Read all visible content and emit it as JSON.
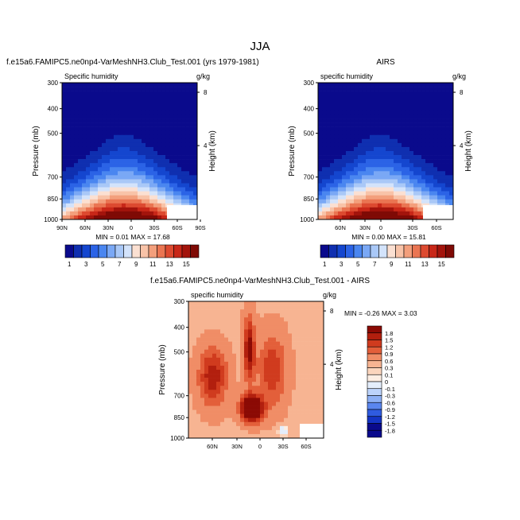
{
  "figure": {
    "title": "JJA",
    "colors": {
      "seq": [
        "#0a0a8c",
        "#0f2fb0",
        "#1446cf",
        "#2b63e6",
        "#4a86f0",
        "#7aa8f5",
        "#a9c8f7",
        "#d3e3fb",
        "#fbe0d2",
        "#f8c3a8",
        "#f39f7c",
        "#ea7552",
        "#dd4a30",
        "#c82718",
        "#a3140c",
        "#7f0a05"
      ],
      "div": [
        "#0a0a8c",
        "#1434c4",
        "#2f5be0",
        "#5a86ef",
        "#8db0f5",
        "#bcd3fb",
        "#e4eefc",
        "#fdeee3",
        "#fbd5bd",
        "#f7b492",
        "#f08d66",
        "#e35f3a",
        "#d03b1e",
        "#b21f0e",
        "#8b0a04"
      ]
    }
  },
  "chart_data": [
    {
      "type": "contour",
      "run_label": "f.e15a6.FAMIPC5.ne0np4-VarMeshNH3.Club_Test.001 (yrs 1979-1981)",
      "left_label": "Specific humidity",
      "right_label": "g/kg",
      "ylabel": "Pressure (mb)",
      "y2label": "Height (km)",
      "yticks": [
        "300",
        "400",
        "500",
        "700",
        "850",
        "1000"
      ],
      "xticks": [
        "90N",
        "60N",
        "30N",
        "0",
        "30S",
        "60S",
        "90S"
      ],
      "y2ticks": [
        "8",
        "4"
      ],
      "stats": "MIN =  0.01  MAX = 17.68",
      "colorbar_labels": [
        "1",
        "3",
        "5",
        "7",
        "9",
        "11",
        "13",
        "15"
      ]
    },
    {
      "type": "contour",
      "run_label": "AIRS",
      "left_label": "specific humidity",
      "right_label": "g/kg",
      "ylabel": "Pressure (mb)",
      "y2label": "Height (km)",
      "yticks": [
        "300",
        "400",
        "500",
        "700",
        "850",
        "1000"
      ],
      "xticks": [
        "60N",
        "30N",
        "0",
        "30S",
        "60S"
      ],
      "y2ticks": [
        "8",
        "4"
      ],
      "stats": "MIN =  0.00  MAX = 15.81",
      "colorbar_labels": [
        "1",
        "3",
        "5",
        "7",
        "9",
        "11",
        "13",
        "15"
      ]
    },
    {
      "type": "contour",
      "run_label": "f.e15a6.FAMIPC5.ne0np4-VarMeshNH3.Club_Test.001 - AIRS",
      "left_label": "specific humidity",
      "right_label": "g/kg",
      "ylabel": "Pressure (mb)",
      "y2label": "Height (km)",
      "yticks": [
        "300",
        "400",
        "500",
        "700",
        "850",
        "1000"
      ],
      "xticks": [
        "60N",
        "30N",
        "0",
        "30S",
        "60S"
      ],
      "y2ticks": [
        "8",
        "4"
      ],
      "stats": "MIN = -0.26  MAX =  3.03",
      "colorbar_labels": [
        "1.8",
        "1.5",
        "1.2",
        "0.9",
        "0.6",
        "0.3",
        "0.1",
        "0",
        "-0.1",
        "-0.3",
        "-0.6",
        "-0.9",
        "-1.2",
        "-1.5",
        "-1.8"
      ]
    }
  ]
}
